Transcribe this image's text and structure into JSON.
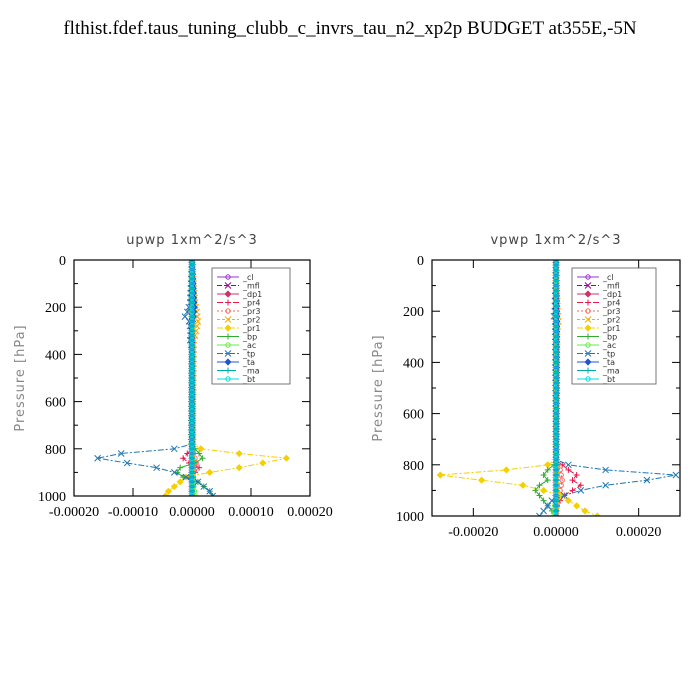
{
  "title": "flthist.fdef.taus_tuning_clubb_c_invrs_tau_n2_xp2p  BUDGET at355E,-5N",
  "chart_data": [
    {
      "type": "line",
      "title": "upwp   1xm^2/s^3",
      "ylabel": "Pressure [hPa]",
      "xlim": [
        -0.0002,
        0.0002
      ],
      "ylim": [
        1000,
        0
      ],
      "xticks": [
        -0.0002,
        -0.0001,
        0.0,
        0.0001,
        0.0002
      ],
      "xtick_labels": [
        "-0.00020",
        "-0.00010",
        "0.00000",
        "0.00010",
        "0.00020"
      ],
      "yticks": [
        0,
        200,
        400,
        600,
        800,
        1000
      ],
      "ytick_labels": [
        "0",
        "200",
        "400",
        "600",
        "800",
        "1000"
      ],
      "legend_position": "top-right",
      "series": [
        {
          "name": "_cl",
          "color": "#9933cc",
          "y": [
            0,
            300,
            600,
            800,
            900,
            1000
          ],
          "x": [
            0,
            0,
            0,
            0,
            0,
            0
          ]
        },
        {
          "name": "_mfl",
          "color": "#990099",
          "y": [
            0,
            300,
            600,
            800,
            900,
            1000
          ],
          "x": [
            0,
            0,
            0,
            0,
            0,
            0
          ]
        },
        {
          "name": "_dp1",
          "color": "#cc3366",
          "y": [
            0,
            300,
            600,
            800,
            900,
            1000
          ],
          "x": [
            0,
            0,
            0,
            0,
            0,
            0
          ]
        },
        {
          "name": "_pr4",
          "color": "#e6194b",
          "y": [
            0,
            700,
            800,
            820,
            840,
            860,
            880,
            900,
            920,
            940,
            960,
            980,
            1000
          ],
          "x": [
            0,
            0,
            0,
            -8e-06,
            -1.5e-05,
            -5e-06,
            1.2e-05,
            5e-06,
            -5e-06,
            4e-06,
            2e-06,
            0,
            0
          ]
        },
        {
          "name": "_pr3",
          "color": "#ff6666",
          "y": [
            0,
            700,
            800,
            840,
            870,
            900,
            940,
            1000
          ],
          "x": [
            0,
            0,
            0,
            5e-06,
            8e-06,
            3e-06,
            2e-06,
            0
          ]
        },
        {
          "name": "_pr2",
          "color": "#ffaa00",
          "y": [
            0,
            180,
            220,
            260,
            300,
            340,
            1000
          ],
          "x": [
            0,
            5e-06,
            8e-06,
            1e-05,
            7e-06,
            3e-06,
            0
          ]
        },
        {
          "name": "_pr1",
          "color": "#f5d000",
          "y": [
            0,
            780,
            800,
            820,
            840,
            860,
            880,
            900,
            920,
            940,
            960,
            980,
            1000
          ],
          "x": [
            0,
            2e-06,
            1.5e-05,
            8e-05,
            0.00016,
            0.00012,
            8e-05,
            3e-05,
            -1e-05,
            -2e-05,
            -3e-05,
            -4e-05,
            -4.5e-05
          ]
        },
        {
          "name": "_bp",
          "color": "#33aa33",
          "y": [
            0,
            780,
            800,
            820,
            840,
            860,
            880,
            900,
            920,
            940,
            960,
            980,
            1000
          ],
          "x": [
            0,
            -2e-06,
            5e-06,
            1.2e-05,
            1.8e-05,
            5e-06,
            -2e-05,
            -2.5e-05,
            -1.5e-05,
            1e-05,
            2e-05,
            3e-05,
            3.5e-05
          ]
        },
        {
          "name": "_ac",
          "color": "#66ee44",
          "y": [
            0,
            900,
            940,
            980,
            1000
          ],
          "x": [
            0,
            0,
            2e-06,
            4e-06,
            5e-06
          ]
        },
        {
          "name": "_tp",
          "color": "#1f77b4",
          "y": [
            0,
            180,
            220,
            240,
            260,
            300,
            340,
            380,
            780,
            800,
            820,
            840,
            860,
            880,
            900,
            920,
            940,
            960,
            980,
            1000
          ],
          "x": [
            0,
            -3e-06,
            -8e-06,
            -1.2e-05,
            -5e-06,
            -2e-06,
            -3e-06,
            0,
            0,
            -3e-05,
            -0.00012,
            -0.00016,
            -0.00011,
            -6e-05,
            -3e-05,
            -1e-05,
            1e-05,
            2e-05,
            3e-05,
            3.5e-05
          ]
        },
        {
          "name": "_ta",
          "color": "#2255cc",
          "y": [
            0,
            160,
            200,
            240,
            280,
            1000
          ],
          "x": [
            0,
            3e-06,
            4e-06,
            2e-06,
            0,
            0
          ]
        },
        {
          "name": "_ma",
          "color": "#00aaaa",
          "y": [
            0,
            1000
          ],
          "x": [
            0,
            0
          ]
        },
        {
          "name": "_bt",
          "color": "#00dddd",
          "y": [
            0,
            1000
          ],
          "x": [
            0,
            0
          ]
        }
      ]
    },
    {
      "type": "line",
      "title": "vpwp   1xm^2/s^3",
      "ylabel": "Pressure [hPa]",
      "xlim": [
        -0.0003,
        0.0003
      ],
      "ylim": [
        1000,
        0
      ],
      "xticks": [
        -0.0002,
        0.0,
        0.0002
      ],
      "xtick_labels": [
        "-0.00020",
        "0.00000",
        "0.00020"
      ],
      "yticks": [
        0,
        200,
        400,
        600,
        800,
        1000
      ],
      "ytick_labels": [
        "0",
        "200",
        "400",
        "600",
        "800",
        "1000"
      ],
      "legend_position": "top-right",
      "series": [
        {
          "name": "_cl",
          "color": "#9933cc",
          "y": [
            0,
            300,
            600,
            800,
            900,
            1000
          ],
          "x": [
            0,
            0,
            0,
            0,
            0,
            0
          ]
        },
        {
          "name": "_mfl",
          "color": "#990099",
          "y": [
            0,
            300,
            600,
            800,
            900,
            1000
          ],
          "x": [
            0,
            0,
            0,
            0,
            0,
            0
          ]
        },
        {
          "name": "_dp1",
          "color": "#cc3366",
          "y": [
            0,
            300,
            600,
            800,
            900,
            1000
          ],
          "x": [
            0,
            0,
            0,
            0,
            0,
            0
          ]
        },
        {
          "name": "_pr4",
          "color": "#e6194b",
          "y": [
            0,
            780,
            800,
            820,
            840,
            860,
            880,
            900,
            920,
            940,
            960,
            980,
            1000
          ],
          "x": [
            0,
            0,
            1.5e-05,
            3e-05,
            5e-05,
            4e-05,
            6e-05,
            4e-05,
            2e-05,
            1e-05,
            0,
            0,
            0
          ]
        },
        {
          "name": "_pr3",
          "color": "#ff6666",
          "y": [
            0,
            780,
            820,
            860,
            900,
            940,
            1000
          ],
          "x": [
            0,
            0,
            1e-05,
            1.5e-05,
            1e-05,
            5e-06,
            0
          ]
        },
        {
          "name": "_pr2",
          "color": "#ffaa00",
          "y": [
            0,
            200,
            240,
            280,
            1000
          ],
          "x": [
            0,
            4e-06,
            6e-06,
            3e-06,
            0
          ]
        },
        {
          "name": "_pr1",
          "color": "#f5d000",
          "y": [
            0,
            780,
            800,
            820,
            840,
            860,
            880,
            900,
            920,
            940,
            960,
            980,
            1000
          ],
          "x": [
            0,
            0,
            -2e-05,
            -0.00012,
            -0.00028,
            -0.00018,
            -8e-05,
            -3e-05,
            1e-05,
            3e-05,
            5e-05,
            7e-05,
            0.0001
          ]
        },
        {
          "name": "_bp",
          "color": "#33aa33",
          "y": [
            0,
            780,
            800,
            820,
            840,
            860,
            880,
            900,
            920,
            940,
            960,
            980,
            1000
          ],
          "x": [
            0,
            0,
            -5e-06,
            -2e-05,
            -3e-05,
            -2e-05,
            -4e-05,
            -5e-05,
            -4e-05,
            -3e-05,
            -2e-05,
            -1e-05,
            0
          ]
        },
        {
          "name": "_ac",
          "color": "#66ee44",
          "y": [
            0,
            900,
            960,
            1000
          ],
          "x": [
            0,
            0,
            -3e-06,
            -5e-06
          ]
        },
        {
          "name": "_tp",
          "color": "#1f77b4",
          "y": [
            0,
            200,
            220,
            240,
            780,
            800,
            820,
            840,
            860,
            880,
            900,
            920,
            940,
            960,
            980,
            1000
          ],
          "x": [
            0,
            -3e-06,
            -5e-06,
            -2e-06,
            0,
            3e-05,
            0.00012,
            0.00029,
            0.00022,
            0.00012,
            6e-05,
            2e-05,
            -1e-05,
            -2e-05,
            -3e-05,
            -4e-05
          ]
        },
        {
          "name": "_ta",
          "color": "#2255cc",
          "y": [
            0,
            200,
            240,
            1000
          ],
          "x": [
            0,
            2e-06,
            2e-06,
            0
          ]
        },
        {
          "name": "_ma",
          "color": "#00aaaa",
          "y": [
            0,
            1000
          ],
          "x": [
            0,
            0
          ]
        },
        {
          "name": "_bt",
          "color": "#00dddd",
          "y": [
            0,
            1000
          ],
          "x": [
            0,
            0
          ]
        }
      ]
    }
  ]
}
